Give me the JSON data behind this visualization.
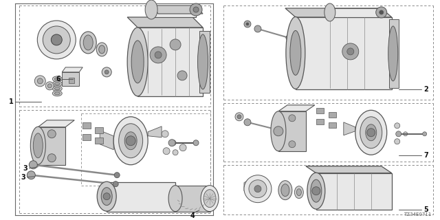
{
  "bg_color": "#ffffff",
  "diagram_code": "TZ34E0711",
  "line_color": "#333333",
  "gray1": "#e8e8e8",
  "gray2": "#cccccc",
  "gray3": "#aaaaaa",
  "gray4": "#888888",
  "gray5": "#555555",
  "gray6": "#333333"
}
